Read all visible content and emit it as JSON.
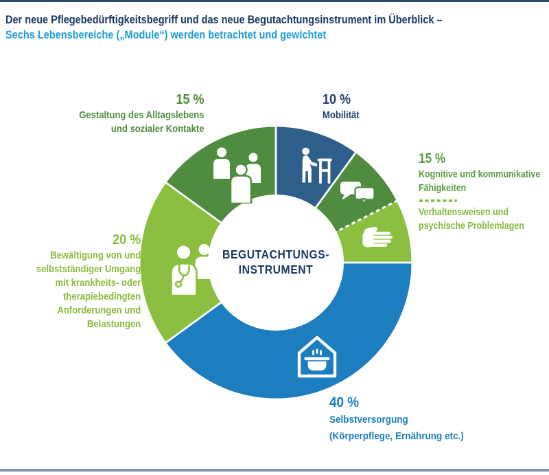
{
  "page": {
    "title_line1": "Der neue Pflegebedürftigkeitsbegriff und das neue Begutachtungsinstrument im Überblick –",
    "title_line2": "Sechs Lebensbereiche („Module“) werden betrachtet und gewichtet",
    "colors": {
      "title_line1": "#1a3863",
      "title_line2": "#1e9cd7",
      "top_border": "#2b4a72",
      "bottom_border": "#7e96b0",
      "background": "#ffffff"
    }
  },
  "chart_data": {
    "type": "pie",
    "subtype": "donut",
    "direction": "clockwise",
    "start_angle_deg": 0,
    "center_label_line1": "BEGUTACHTUNGS-",
    "center_label_line2": "INSTRUMENT",
    "center_label_color": "#1a3863",
    "segments": [
      {
        "id": "mobilitaet",
        "label": "Mobilität",
        "value": 10,
        "display_percent": "10 %",
        "color": "#2d5f8a",
        "icon": "person-with-walker-icon",
        "boundary": "solid"
      },
      {
        "id": "kognitive-faehigkeiten",
        "label": "Kognitive und kommunikative Fähigkeiten",
        "value": 7.5,
        "display_percent": "15 %",
        "color": "#4f8c3f",
        "icon": "speech-bubbles-icon",
        "boundary": "solid"
      },
      {
        "id": "verhaltensweisen",
        "label": "Verhaltensweisen und psychische Problemlagen",
        "value": 7.5,
        "display_percent": "15 %",
        "color": "#8cbf40",
        "icon": "hand-icon",
        "boundary": "dashed"
      },
      {
        "id": "selbstversorgung",
        "label": "Selbstversorgung (Körperpflege, Ernährung etc.)",
        "value": 40,
        "display_percent": "40 %",
        "color": "#1c7dbf",
        "icon": "house-cooking-pot-icon",
        "boundary": "solid"
      },
      {
        "id": "bewaeltigung",
        "label": "Bewältigung von und selbstständiger Umgang mit krankheits- oder therapiebedingten Anforderungen und Belastungen",
        "value": 20,
        "display_percent": "20 %",
        "color": "#8cbf40",
        "icon": "caregiver-patient-icon",
        "boundary": "solid"
      },
      {
        "id": "gestaltung",
        "label": "Gestaltung des Alltagslebens und sozialer Kontakte",
        "value": 15,
        "display_percent": "15 %",
        "color": "#4f8c3f",
        "icon": "people-group-icon",
        "boundary": "solid"
      }
    ]
  },
  "labels": {
    "gestaltung": {
      "percent": "15 %",
      "lines": [
        "Gestaltung des Alltagslebens",
        "und sozialer Kontakte"
      ],
      "color": "#4f8c3f"
    },
    "mobilitaet": {
      "percent": "10 %",
      "lines": [
        "Mobilität"
      ],
      "color": "#1d3e6b"
    },
    "kognitive": {
      "percent": "15 %",
      "lines_a": [
        "Kognitive und kommunikative",
        "Fähigkeiten"
      ],
      "color_a": "#5a9a42",
      "lines_b": [
        "Verhaltensweisen und",
        "psychische Problemlagen"
      ],
      "color_b": "#86b83e"
    },
    "selbstversorgung": {
      "percent": "40 %",
      "lines": [
        "Selbstversorgung",
        "(Körperpflege, Ernährung etc.)"
      ],
      "color": "#1c7dbf"
    },
    "bewaeltigung": {
      "percent": "20 %",
      "lines": [
        "Bewältigung von und",
        "selbstständiger Umgang",
        "mit krankheits- oder",
        "therapiebedingten",
        "Anforderungen und",
        "Belastungen"
      ],
      "color": "#8cba3e"
    }
  }
}
